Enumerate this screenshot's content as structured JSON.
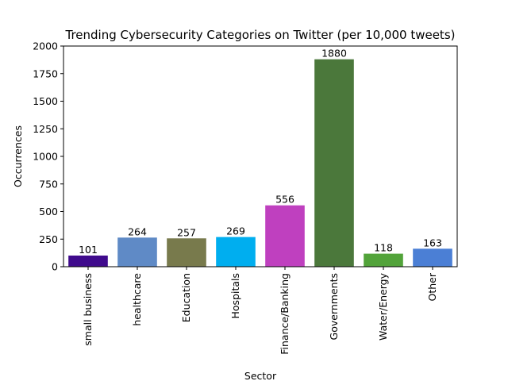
{
  "chart_data": {
    "type": "bar",
    "title": "Trending Cybersecurity Categories on Twitter (per 10,000 tweets)",
    "xlabel": "Sector",
    "ylabel": "Occurrences",
    "ylim": [
      0,
      2000
    ],
    "yticks": [
      0,
      250,
      500,
      750,
      1000,
      1250,
      1500,
      1750,
      2000
    ],
    "grid": false,
    "categories": [
      "small business",
      "healthcare",
      "Education",
      "Hospitals",
      "Finance/Banking",
      "Governments",
      "Water/Energy",
      "Other"
    ],
    "values": [
      101,
      264,
      257,
      269,
      556,
      1880,
      118,
      163
    ],
    "colors": [
      "#3f0a8c",
      "#5f8ac6",
      "#787a4c",
      "#00aeef",
      "#bf40bf",
      "#4b783b",
      "#52a33a",
      "#4b7fd5"
    ]
  }
}
